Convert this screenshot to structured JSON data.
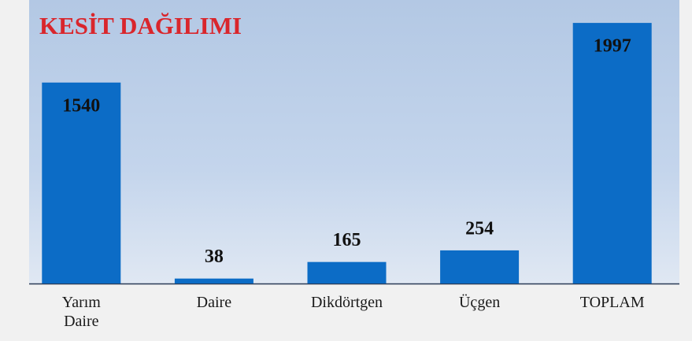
{
  "chart_data": {
    "type": "bar",
    "title": "KESİT DAĞILIMI",
    "categories": [
      "Yarım Daire",
      "Daire",
      "Dikdörtgen",
      "Üçgen",
      "TOPLAM"
    ],
    "values": [
      1540,
      38,
      165,
      254,
      1997
    ],
    "color": "#0c6cc6",
    "ylim": [
      0,
      2000
    ]
  }
}
